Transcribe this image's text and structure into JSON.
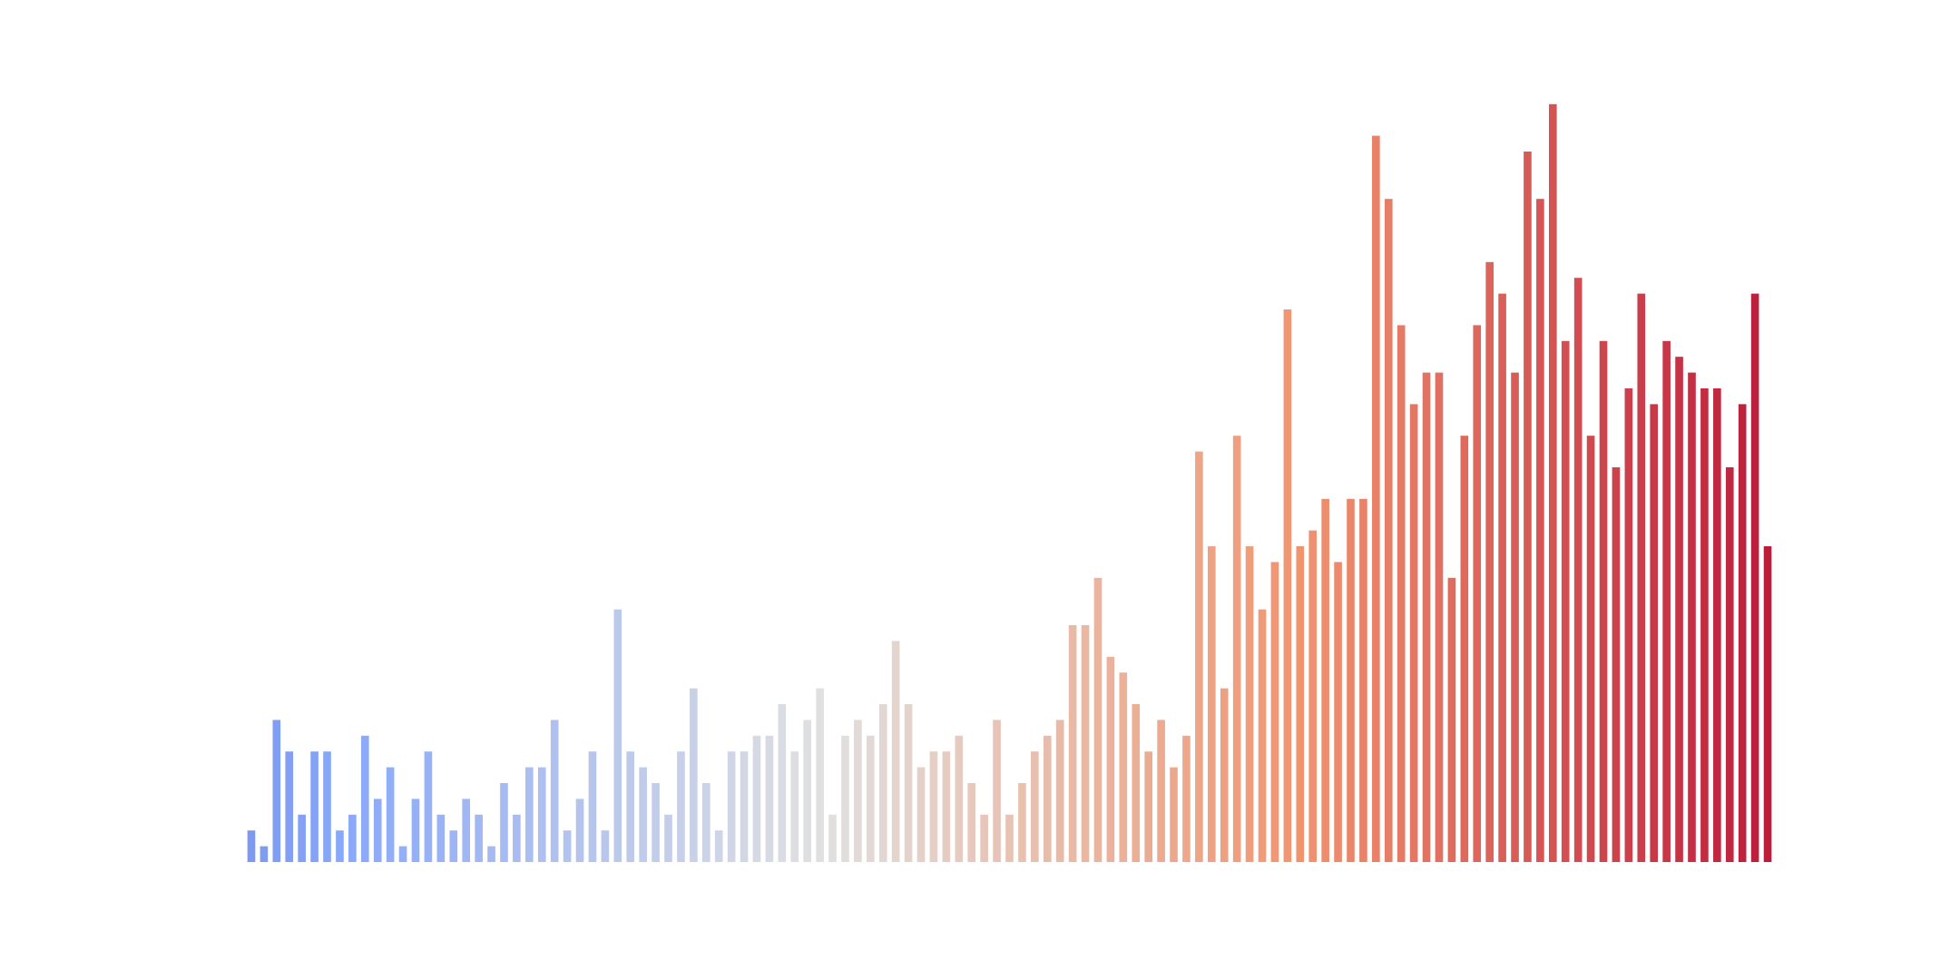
{
  "chart_data": {
    "type": "bar",
    "title": "",
    "xlabel": "",
    "ylabel": "",
    "axes_visible": false,
    "grid": false,
    "legend": "none",
    "colormap": "coolwarm",
    "ylim": [
      0,
      50
    ],
    "values": [
      2,
      1,
      9,
      7,
      3,
      7,
      7,
      2,
      3,
      8,
      4,
      6,
      1,
      4,
      7,
      3,
      2,
      4,
      3,
      1,
      5,
      3,
      6,
      6,
      9,
      2,
      4,
      7,
      2,
      16,
      7,
      6,
      5,
      3,
      7,
      11,
      5,
      2,
      7,
      7,
      8,
      8,
      10,
      7,
      9,
      11,
      3,
      8,
      9,
      8,
      10,
      14,
      10,
      6,
      7,
      7,
      8,
      5,
      3,
      9,
      3,
      5,
      7,
      8,
      9,
      15,
      15,
      18,
      13,
      12,
      10,
      7,
      9,
      6,
      8,
      26,
      20,
      11,
      27,
      20,
      16,
      19,
      35,
      20,
      21,
      23,
      19,
      23,
      23,
      46,
      42,
      34,
      29,
      31,
      31,
      18,
      27,
      34,
      38,
      36,
      31,
      45,
      42,
      48,
      33,
      37,
      27,
      33,
      25,
      30,
      36,
      29,
      33,
      32,
      31,
      30,
      30,
      25,
      29,
      36,
      20
    ]
  }
}
